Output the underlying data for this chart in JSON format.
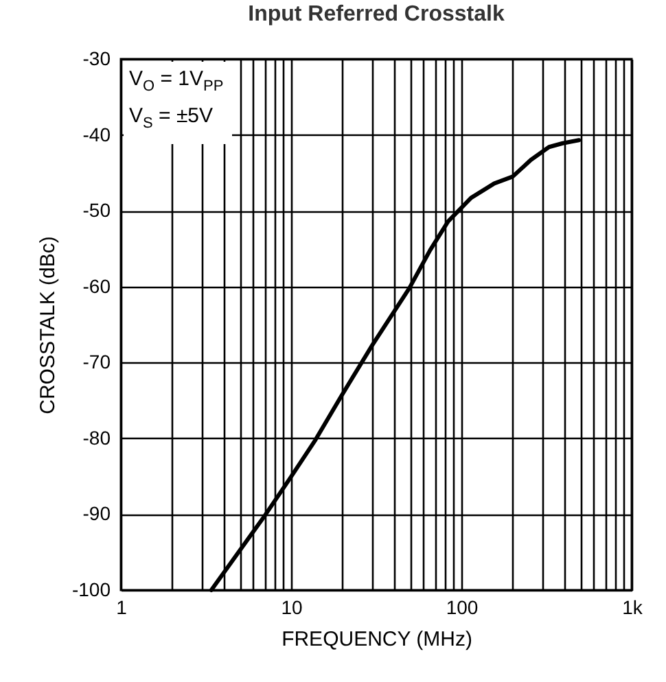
{
  "chart_data": {
    "type": "line",
    "title": "Input Referred Crosstalk",
    "xlabel": "FREQUENCY (MHz)",
    "ylabel": "CROSSTALK (dBc)",
    "annotations": [
      "V$_{O}$ = 1V$_{PP}$",
      "V$_{S}$ = ±5V"
    ],
    "log": "x",
    "grid": true,
    "legend": false,
    "marker": "none",
    "line_style": "solid",
    "xlim": [
      1,
      1000
    ],
    "ylim": [
      -100,
      -30
    ],
    "xticks": [
      1,
      {
        "value": 2,
        "label": null
      },
      {
        "value": 3,
        "label": null
      },
      {
        "value": 4,
        "label": null
      },
      {
        "value": 5,
        "label": null
      },
      {
        "value": 6,
        "label": null
      },
      {
        "value": 7,
        "label": null
      },
      {
        "value": 8,
        "label": null
      },
      {
        "value": 9,
        "label": null
      },
      10,
      {
        "value": 20,
        "label": null
      },
      {
        "value": 30,
        "label": null
      },
      {
        "value": 40,
        "label": null
      },
      {
        "value": 50,
        "label": null
      },
      {
        "value": 60,
        "label": null
      },
      {
        "value": 70,
        "label": null
      },
      {
        "value": 80,
        "label": null
      },
      {
        "value": 90,
        "label": null
      },
      100,
      {
        "value": 200,
        "label": null
      },
      {
        "value": 300,
        "label": null
      },
      {
        "value": 400,
        "label": null
      },
      {
        "value": 500,
        "label": null
      },
      {
        "value": 600,
        "label": null
      },
      {
        "value": 700,
        "label": null
      },
      {
        "value": 800,
        "label": null
      },
      {
        "value": 900,
        "label": null
      },
      {
        "value": 1000,
        "label": "1k"
      }
    ],
    "yticks": [
      -100,
      -90,
      -80,
      -70,
      -60,
      -50,
      -40,
      -30
    ],
    "x": [
      3.4,
      7,
      9.9,
      13.9,
      19.5,
      30,
      49.5,
      65.5,
      83.6,
      114,
      156,
      200,
      256,
      327,
      394,
      490
    ],
    "series": [
      {
        "color": "#000000",
        "values": [
          -100,
          -90.2,
          -85.2,
          -80.2,
          -74.6,
          -67.7,
          -60.2,
          -55.2,
          -51.4,
          -48.3,
          -46.4,
          -45.5,
          -43.3,
          -41.6,
          -41.1,
          -40.7
        ]
      }
    ]
  }
}
